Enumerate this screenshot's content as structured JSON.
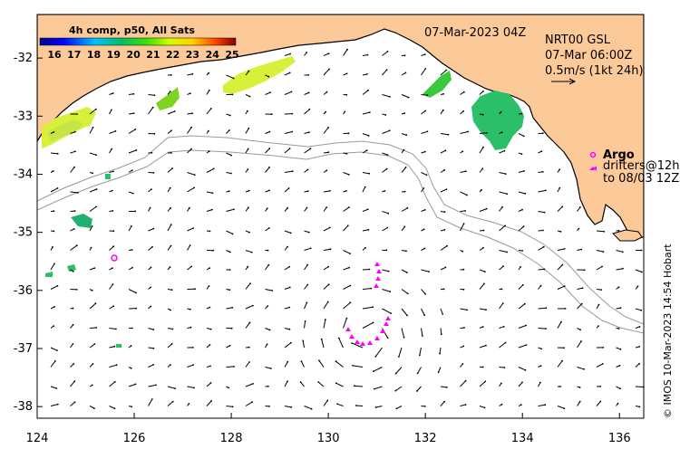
{
  "map": {
    "lon_min": 124.0,
    "lon_max": 136.5,
    "lat_min": -38.2,
    "lat_max": -31.25,
    "lon_ticks": [
      "124",
      "126",
      "128",
      "130",
      "132",
      "134",
      "136"
    ],
    "lat_ticks": [
      "-32",
      "-33",
      "-34",
      "-35",
      "-36",
      "-37",
      "-38"
    ]
  },
  "colorbar": {
    "title": "4h comp, p50, All Sats",
    "labels": [
      "16",
      "17",
      "18",
      "19",
      "20",
      "21",
      "22",
      "23",
      "24",
      "25"
    ],
    "min": 16,
    "max": 25
  },
  "annotations": {
    "date": "07-Mar-2023 04Z",
    "product": "NRT00 GSL",
    "valid_time": "07-Mar 06:00Z",
    "scale": "0.5m/s (1kt 24h)",
    "argo_label": "Argo",
    "drifters_line1": "drifters@12h",
    "drifters_line2": "to 08/03 12Z",
    "copyright": "© IMOS 10-Mar-2023 14:54 Hobart"
  },
  "colors": {
    "land": "#fcc998",
    "ocean": "#ffffff",
    "drifter": "#ff00ff",
    "bathymetry": "#9a9a9a"
  }
}
